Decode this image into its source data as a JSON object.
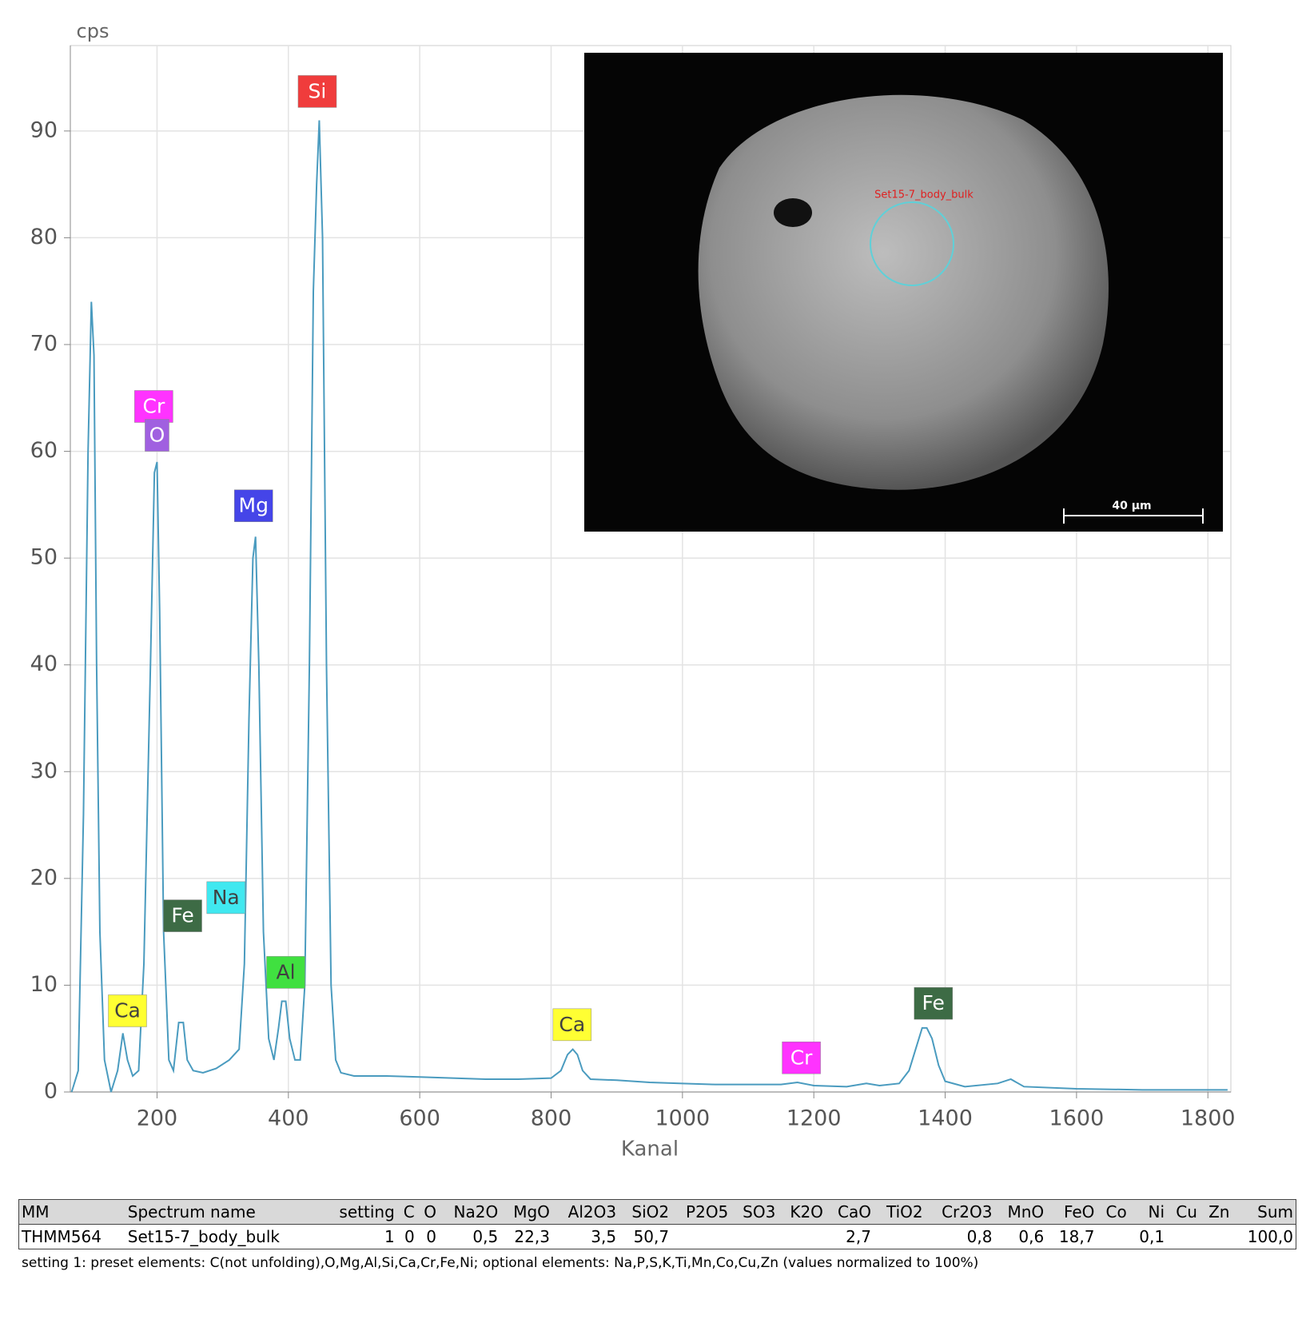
{
  "chart_data": {
    "type": "line",
    "color": "#4a9bbf",
    "grid": true,
    "y_label": "cps",
    "x_label": "Kanal",
    "xlim": [
      68,
      1835
    ],
    "ylim": [
      0,
      98
    ],
    "xticks": [
      200,
      400,
      600,
      800,
      1000,
      1200,
      1400,
      1600,
      1800
    ],
    "yticks": [
      0,
      10,
      20,
      30,
      40,
      50,
      60,
      70,
      80,
      90
    ],
    "x": [
      70,
      80,
      88,
      95,
      100,
      104,
      108,
      113,
      120,
      130,
      140,
      148,
      155,
      163,
      172,
      180,
      190,
      196,
      200,
      204,
      210,
      218,
      225,
      233,
      240,
      246,
      255,
      270,
      290,
      310,
      325,
      333,
      340,
      346,
      350,
      355,
      362,
      370,
      378,
      385,
      390,
      396,
      402,
      410,
      418,
      425,
      432,
      438,
      443,
      447,
      452,
      458,
      465,
      472,
      480,
      500,
      550,
      600,
      650,
      700,
      750,
      800,
      815,
      825,
      833,
      840,
      848,
      860,
      900,
      950,
      1000,
      1050,
      1100,
      1150,
      1175,
      1200,
      1250,
      1280,
      1300,
      1330,
      1345,
      1355,
      1365,
      1372,
      1380,
      1390,
      1400,
      1430,
      1480,
      1500,
      1520,
      1600,
      1700,
      1800,
      1830
    ],
    "values": [
      0,
      2,
      26,
      60,
      74,
      69,
      40,
      15,
      3,
      0,
      2,
      5.5,
      3,
      1.5,
      2,
      12,
      40,
      58,
      59,
      45,
      15,
      3,
      2,
      6.5,
      6.5,
      3,
      2,
      1.8,
      2.2,
      3,
      4,
      12,
      35,
      50,
      52,
      40,
      15,
      5,
      3,
      6,
      8.5,
      8.5,
      5,
      3,
      3,
      10,
      40,
      75,
      85,
      91,
      80,
      40,
      10,
      3,
      1.8,
      1.5,
      1.5,
      1.4,
      1.3,
      1.2,
      1.2,
      1.3,
      2,
      3.5,
      4,
      3.5,
      2,
      1.2,
      1.1,
      0.9,
      0.8,
      0.7,
      0.7,
      0.7,
      0.9,
      0.6,
      0.5,
      0.8,
      0.6,
      0.8,
      2,
      4,
      6,
      6,
      5,
      2.5,
      1,
      0.5,
      0.8,
      1.2,
      0.5,
      0.3,
      0.2,
      0.2,
      0.2
    ],
    "peaks": [
      {
        "label": "Si",
        "x": 444,
        "y": 93.7,
        "color": "#f03c3c",
        "text_color": "#ffffff"
      },
      {
        "label": "Cr",
        "x": 195,
        "y": 64.2,
        "color": "#ff33ff",
        "text_color": "#ffffff"
      },
      {
        "label": "O",
        "x": 200,
        "y": 61.5,
        "color": "#a060e0",
        "text_color": "#ffffff"
      },
      {
        "label": "Mg",
        "x": 347,
        "y": 54.9,
        "color": "#4545e8",
        "text_color": "#ffffff"
      },
      {
        "label": "Na",
        "x": 305,
        "y": 18.2,
        "color": "#40e8f0",
        "text_color": "#404040"
      },
      {
        "label": "Fe",
        "x": 239,
        "y": 16.5,
        "color": "#3d6b45",
        "text_color": "#ffffff"
      },
      {
        "label": "Al",
        "x": 396,
        "y": 11.2,
        "color": "#40e040",
        "text_color": "#404040"
      },
      {
        "label": "Ca",
        "x": 155,
        "y": 7.6,
        "color": "#ffff33",
        "text_color": "#404040"
      },
      {
        "label": "Ca",
        "x": 832,
        "y": 6.3,
        "color": "#ffff33",
        "text_color": "#404040"
      },
      {
        "label": "Cr",
        "x": 1181,
        "y": 3.2,
        "color": "#ff33ff",
        "text_color": "#ffffff"
      },
      {
        "label": "Fe",
        "x": 1382,
        "y": 8.3,
        "color": "#3d6b45",
        "text_color": "#ffffff"
      }
    ]
  },
  "image": {
    "label": "Set15-7_body_bulk",
    "scale_bar": "40 µm"
  },
  "table": {
    "header": [
      "MM",
      "Spectrum name",
      "setting",
      "C",
      "O",
      "Na2O",
      "MgO",
      "Al2O3",
      "SiO2",
      "P2O5",
      "SO3",
      "K2O",
      "CaO",
      "TiO2",
      "Cr2O3",
      "MnO",
      "FeO",
      "Co",
      "Ni",
      "Cu",
      "Zn",
      "Sum"
    ],
    "rows": [
      [
        "THMM564",
        "Set15-7_body_bulk",
        "1",
        "0",
        "0",
        "0,5",
        "22,3",
        "3,5",
        "50,7",
        null,
        null,
        null,
        "2,7",
        null,
        "0,8",
        "0,6",
        "18,7",
        null,
        "0,1",
        null,
        null,
        "100,0"
      ]
    ]
  },
  "footnote": "setting 1: preset elements: C(not unfolding),O,Mg,Al,Si,Ca,Cr,Fe,Ni; optional elements: Na,P,S,K,Ti,Mn,Co,Cu,Zn (values normalized to 100%)"
}
